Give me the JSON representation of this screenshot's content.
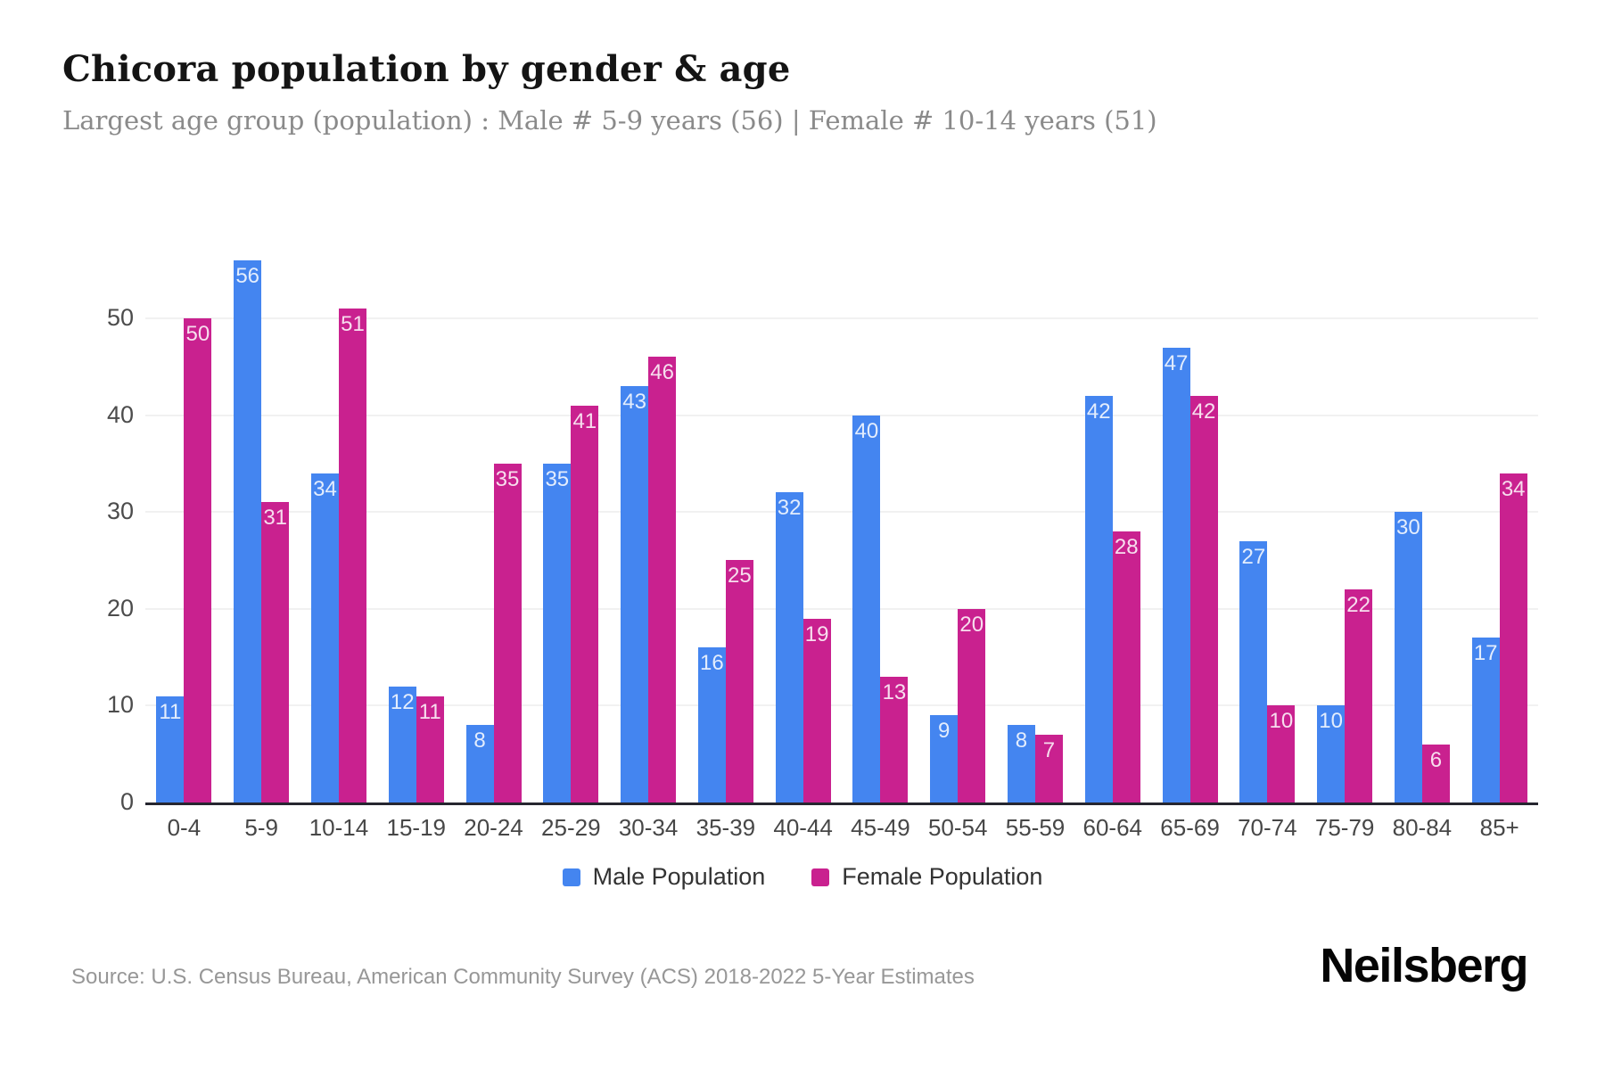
{
  "header": {
    "title": "Chicora population by gender & age",
    "subtitle": "Largest age group (population) : Male # 5-9 years (56) | Female # 10-14 years (51)"
  },
  "chart_data": {
    "type": "bar",
    "title": "Chicora population by gender & age",
    "xlabel": "",
    "ylabel": "",
    "categories": [
      "0-4",
      "5-9",
      "10-14",
      "15-19",
      "20-24",
      "25-29",
      "30-34",
      "35-39",
      "40-44",
      "45-49",
      "50-54",
      "55-59",
      "60-64",
      "65-69",
      "70-74",
      "75-79",
      "80-84",
      "85+"
    ],
    "series": [
      {
        "name": "Male Population",
        "color": "#4485f0",
        "values": [
          11,
          56,
          34,
          12,
          8,
          35,
          43,
          16,
          32,
          40,
          9,
          8,
          42,
          47,
          27,
          10,
          30,
          17
        ]
      },
      {
        "name": "Female Population",
        "color": "#c9218f",
        "values": [
          50,
          31,
          51,
          11,
          35,
          41,
          46,
          25,
          19,
          13,
          20,
          7,
          28,
          42,
          10,
          22,
          6,
          34
        ]
      }
    ],
    "ylim": [
      0,
      56
    ],
    "yticks": [
      0,
      10,
      20,
      30,
      40,
      50
    ],
    "grid": "horizontal",
    "legend_position": "bottom",
    "value_labels": "inside-top",
    "colors": {
      "male": "#4485f0",
      "female": "#c9218f",
      "gridline": "#f1f1f1",
      "axis_line": "#262630",
      "tick_label": "#4c4c4c",
      "value_label": "rgba(255,255,255,0.85)"
    }
  },
  "footer": {
    "source": "Source: U.S. Census Bureau, American Community Survey (ACS) 2018-2022 5-Year Estimates",
    "logo": "Neilsberg"
  }
}
